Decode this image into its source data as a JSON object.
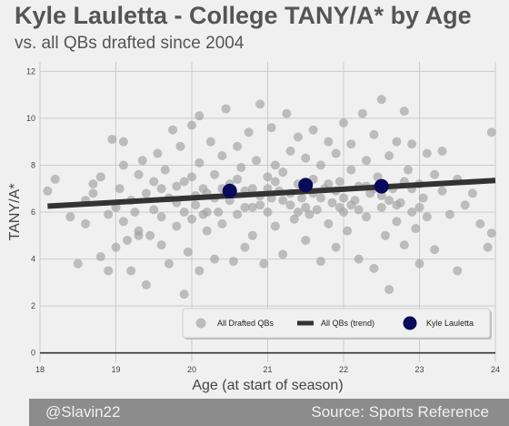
{
  "header": {
    "title": "Kyle Lauletta - College TANY/A* by Age",
    "subtitle": "vs. all QBs drafted since 2004"
  },
  "footer": {
    "credit": "@Slavin22",
    "source": "Source: Sports Reference"
  },
  "colors": {
    "background": "#f0f0f0",
    "grid": "#cbcbcb",
    "drafted_points": "#a0a0a0",
    "trend_line": "#333333",
    "highlight": "#0a0a5a",
    "footer_bg": "#8c8c8c"
  },
  "chart_data": {
    "type": "scatter",
    "title": "Kyle Lauletta - College TANY/A* by Age",
    "subtitle": "vs. all QBs drafted since 2004",
    "xlabel": "Age (at start of season)",
    "ylabel": "TANY/A*",
    "xlim": [
      18,
      24
    ],
    "ylim": [
      -0.4,
      12.4
    ],
    "xticks": [
      18,
      19,
      20,
      21,
      22,
      23,
      24
    ],
    "yticks": [
      0,
      2,
      4,
      6,
      8,
      10,
      12
    ],
    "grid": true,
    "legend_position": "bottom-right",
    "series": [
      {
        "name": "All Drafted QBs",
        "kind": "scatter",
        "color": "#a0a0a0",
        "points": [
          [
            18.1,
            6.9
          ],
          [
            18.2,
            7.4
          ],
          [
            18.4,
            5.8
          ],
          [
            18.5,
            3.8
          ],
          [
            18.6,
            6.5
          ],
          [
            18.6,
            5.5
          ],
          [
            18.7,
            7.2
          ],
          [
            18.7,
            6.8
          ],
          [
            18.8,
            4.1
          ],
          [
            18.8,
            7.5
          ],
          [
            18.9,
            5.9
          ],
          [
            18.9,
            3.5
          ],
          [
            18.95,
            9.1
          ],
          [
            19.0,
            4.5
          ],
          [
            19.0,
            6.2
          ],
          [
            19.05,
            7.0
          ],
          [
            19.1,
            8.0
          ],
          [
            19.1,
            5.6
          ],
          [
            19.1,
            9.0
          ],
          [
            19.15,
            4.8
          ],
          [
            19.2,
            6.5
          ],
          [
            19.2,
            3.5
          ],
          [
            19.25,
            6.0
          ],
          [
            19.3,
            7.6
          ],
          [
            19.3,
            5.2
          ],
          [
            19.35,
            8.2
          ],
          [
            19.4,
            6.8
          ],
          [
            19.4,
            2.9
          ],
          [
            19.45,
            5.0
          ],
          [
            19.5,
            7.3
          ],
          [
            19.5,
            6.1
          ],
          [
            19.55,
            8.5
          ],
          [
            19.6,
            4.6
          ],
          [
            19.6,
            5.8
          ],
          [
            19.65,
            7.8
          ],
          [
            19.7,
            3.8
          ],
          [
            19.7,
            6.6
          ],
          [
            19.75,
            9.5
          ],
          [
            19.8,
            5.4
          ],
          [
            19.8,
            7.1
          ],
          [
            19.85,
            8.8
          ],
          [
            19.9,
            2.5
          ],
          [
            19.9,
            6.0
          ],
          [
            19.95,
            4.3
          ],
          [
            20.0,
            7.5
          ],
          [
            20.0,
            9.7
          ],
          [
            20.0,
            5.7
          ],
          [
            20.05,
            6.3
          ],
          [
            20.1,
            3.5
          ],
          [
            20.1,
            8.1
          ],
          [
            20.1,
            10.1
          ],
          [
            20.15,
            7.0
          ],
          [
            20.2,
            5.2
          ],
          [
            20.2,
            6.8
          ],
          [
            20.25,
            9.0
          ],
          [
            20.3,
            4.0
          ],
          [
            20.3,
            7.6
          ],
          [
            20.35,
            6.0
          ],
          [
            20.4,
            8.4
          ],
          [
            20.4,
            5.5
          ],
          [
            20.45,
            10.4
          ],
          [
            20.5,
            7.2
          ],
          [
            20.5,
            6.5
          ],
          [
            20.55,
            3.9
          ],
          [
            20.6,
            8.8
          ],
          [
            20.6,
            5.9
          ],
          [
            20.65,
            7.9
          ],
          [
            20.7,
            6.2
          ],
          [
            20.7,
            4.5
          ],
          [
            20.75,
            9.4
          ],
          [
            20.8,
            7.0
          ],
          [
            20.8,
            5.0
          ],
          [
            20.85,
            8.2
          ],
          [
            20.9,
            6.7
          ],
          [
            20.9,
            10.6
          ],
          [
            20.95,
            3.8
          ],
          [
            21.0,
            7.5
          ],
          [
            21.0,
            6.0
          ],
          [
            21.05,
            9.6
          ],
          [
            21.1,
            5.4
          ],
          [
            21.1,
            8.0
          ],
          [
            21.15,
            6.9
          ],
          [
            21.2,
            4.2
          ],
          [
            21.2,
            7.7
          ],
          [
            21.25,
            10.2
          ],
          [
            21.3,
            6.3
          ],
          [
            21.3,
            8.6
          ],
          [
            21.35,
            5.7
          ],
          [
            21.4,
            7.2
          ],
          [
            21.4,
            9.2
          ],
          [
            21.45,
            6.6
          ],
          [
            21.5,
            4.8
          ],
          [
            21.5,
            8.3
          ],
          [
            21.55,
            5.9
          ],
          [
            21.6,
            7.4
          ],
          [
            21.6,
            9.5
          ],
          [
            21.65,
            6.1
          ],
          [
            21.7,
            8.0
          ],
          [
            21.7,
            3.9
          ],
          [
            21.75,
            7.0
          ],
          [
            21.8,
            5.5
          ],
          [
            21.8,
            9.0
          ],
          [
            21.85,
            6.4
          ],
          [
            21.9,
            8.5
          ],
          [
            21.9,
            4.5
          ],
          [
            21.95,
            7.3
          ],
          [
            22.0,
            6.0
          ],
          [
            22.0,
            9.8
          ],
          [
            22.05,
            5.2
          ],
          [
            22.1,
            7.8
          ],
          [
            22.1,
            8.9
          ],
          [
            22.15,
            6.5
          ],
          [
            22.2,
            4.0
          ],
          [
            22.2,
            7.1
          ],
          [
            22.25,
            10.2
          ],
          [
            22.3,
            5.8
          ],
          [
            22.3,
            8.2
          ],
          [
            22.35,
            6.8
          ],
          [
            22.4,
            3.6
          ],
          [
            22.4,
            9.3
          ],
          [
            22.45,
            7.5
          ],
          [
            22.5,
            6.2
          ],
          [
            22.5,
            10.8
          ],
          [
            22.55,
            5.0
          ],
          [
            22.6,
            8.4
          ],
          [
            22.6,
            2.7
          ],
          [
            22.65,
            7.0
          ],
          [
            22.7,
            5.6
          ],
          [
            22.7,
            9.0
          ],
          [
            22.75,
            6.4
          ],
          [
            22.8,
            4.6
          ],
          [
            22.8,
            10.3
          ],
          [
            22.85,
            7.8
          ],
          [
            22.9,
            6.0
          ],
          [
            22.9,
            8.9
          ],
          [
            22.95,
            5.3
          ],
          [
            23.0,
            7.2
          ],
          [
            23.0,
            3.8
          ],
          [
            23.05,
            6.6
          ],
          [
            23.1,
            8.5
          ],
          [
            23.1,
            5.8
          ],
          [
            23.2,
            7.6
          ],
          [
            23.2,
            4.4
          ],
          [
            23.3,
            6.9
          ],
          [
            23.3,
            8.6
          ],
          [
            23.4,
            5.9
          ],
          [
            23.5,
            7.4
          ],
          [
            23.5,
            3.5
          ],
          [
            23.6,
            6.3
          ],
          [
            23.7,
            6.8
          ],
          [
            23.8,
            5.5
          ],
          [
            23.95,
            9.4
          ],
          [
            23.95,
            5.1
          ],
          [
            23.9,
            4.5
          ],
          [
            19.3,
            5.0
          ],
          [
            19.6,
            7.0
          ],
          [
            20.3,
            6.6
          ],
          [
            20.6,
            7.4
          ],
          [
            20.8,
            6.2
          ],
          [
            21.0,
            7.0
          ],
          [
            21.2,
            6.5
          ],
          [
            21.4,
            6.0
          ],
          [
            21.6,
            6.8
          ],
          [
            21.8,
            7.2
          ],
          [
            22.0,
            6.6
          ],
          [
            22.2,
            6.1
          ],
          [
            22.4,
            7.0
          ],
          [
            22.6,
            6.5
          ],
          [
            22.8,
            7.3
          ],
          [
            23.0,
            6.2
          ],
          [
            20.2,
            6.0
          ],
          [
            20.4,
            7.0
          ],
          [
            20.7,
            6.9
          ],
          [
            20.9,
            6.3
          ],
          [
            21.1,
            7.3
          ],
          [
            21.3,
            6.8
          ],
          [
            21.5,
            6.2
          ],
          [
            21.7,
            6.6
          ],
          [
            21.9,
            6.9
          ],
          [
            22.1,
            6.3
          ],
          [
            22.3,
            7.1
          ],
          [
            22.5,
            6.7
          ],
          [
            22.7,
            6.3
          ],
          [
            22.9,
            7.0
          ],
          [
            19.8,
            6.4
          ],
          [
            19.9,
            7.3
          ],
          [
            20.05,
            6.7
          ],
          [
            20.15,
            5.9
          ],
          [
            21.05,
            6.6
          ],
          [
            21.95,
            6.2
          ]
        ]
      },
      {
        "name": "All QBs (trend)",
        "kind": "line",
        "color": "#333333",
        "points": [
          [
            18.1,
            6.25
          ],
          [
            24.0,
            7.35
          ]
        ]
      },
      {
        "name": "Kyle Lauletta",
        "kind": "scatter",
        "color": "#0a0a5a",
        "points": [
          [
            20.5,
            6.9
          ],
          [
            21.5,
            7.15
          ],
          [
            22.5,
            7.1
          ]
        ]
      }
    ]
  }
}
